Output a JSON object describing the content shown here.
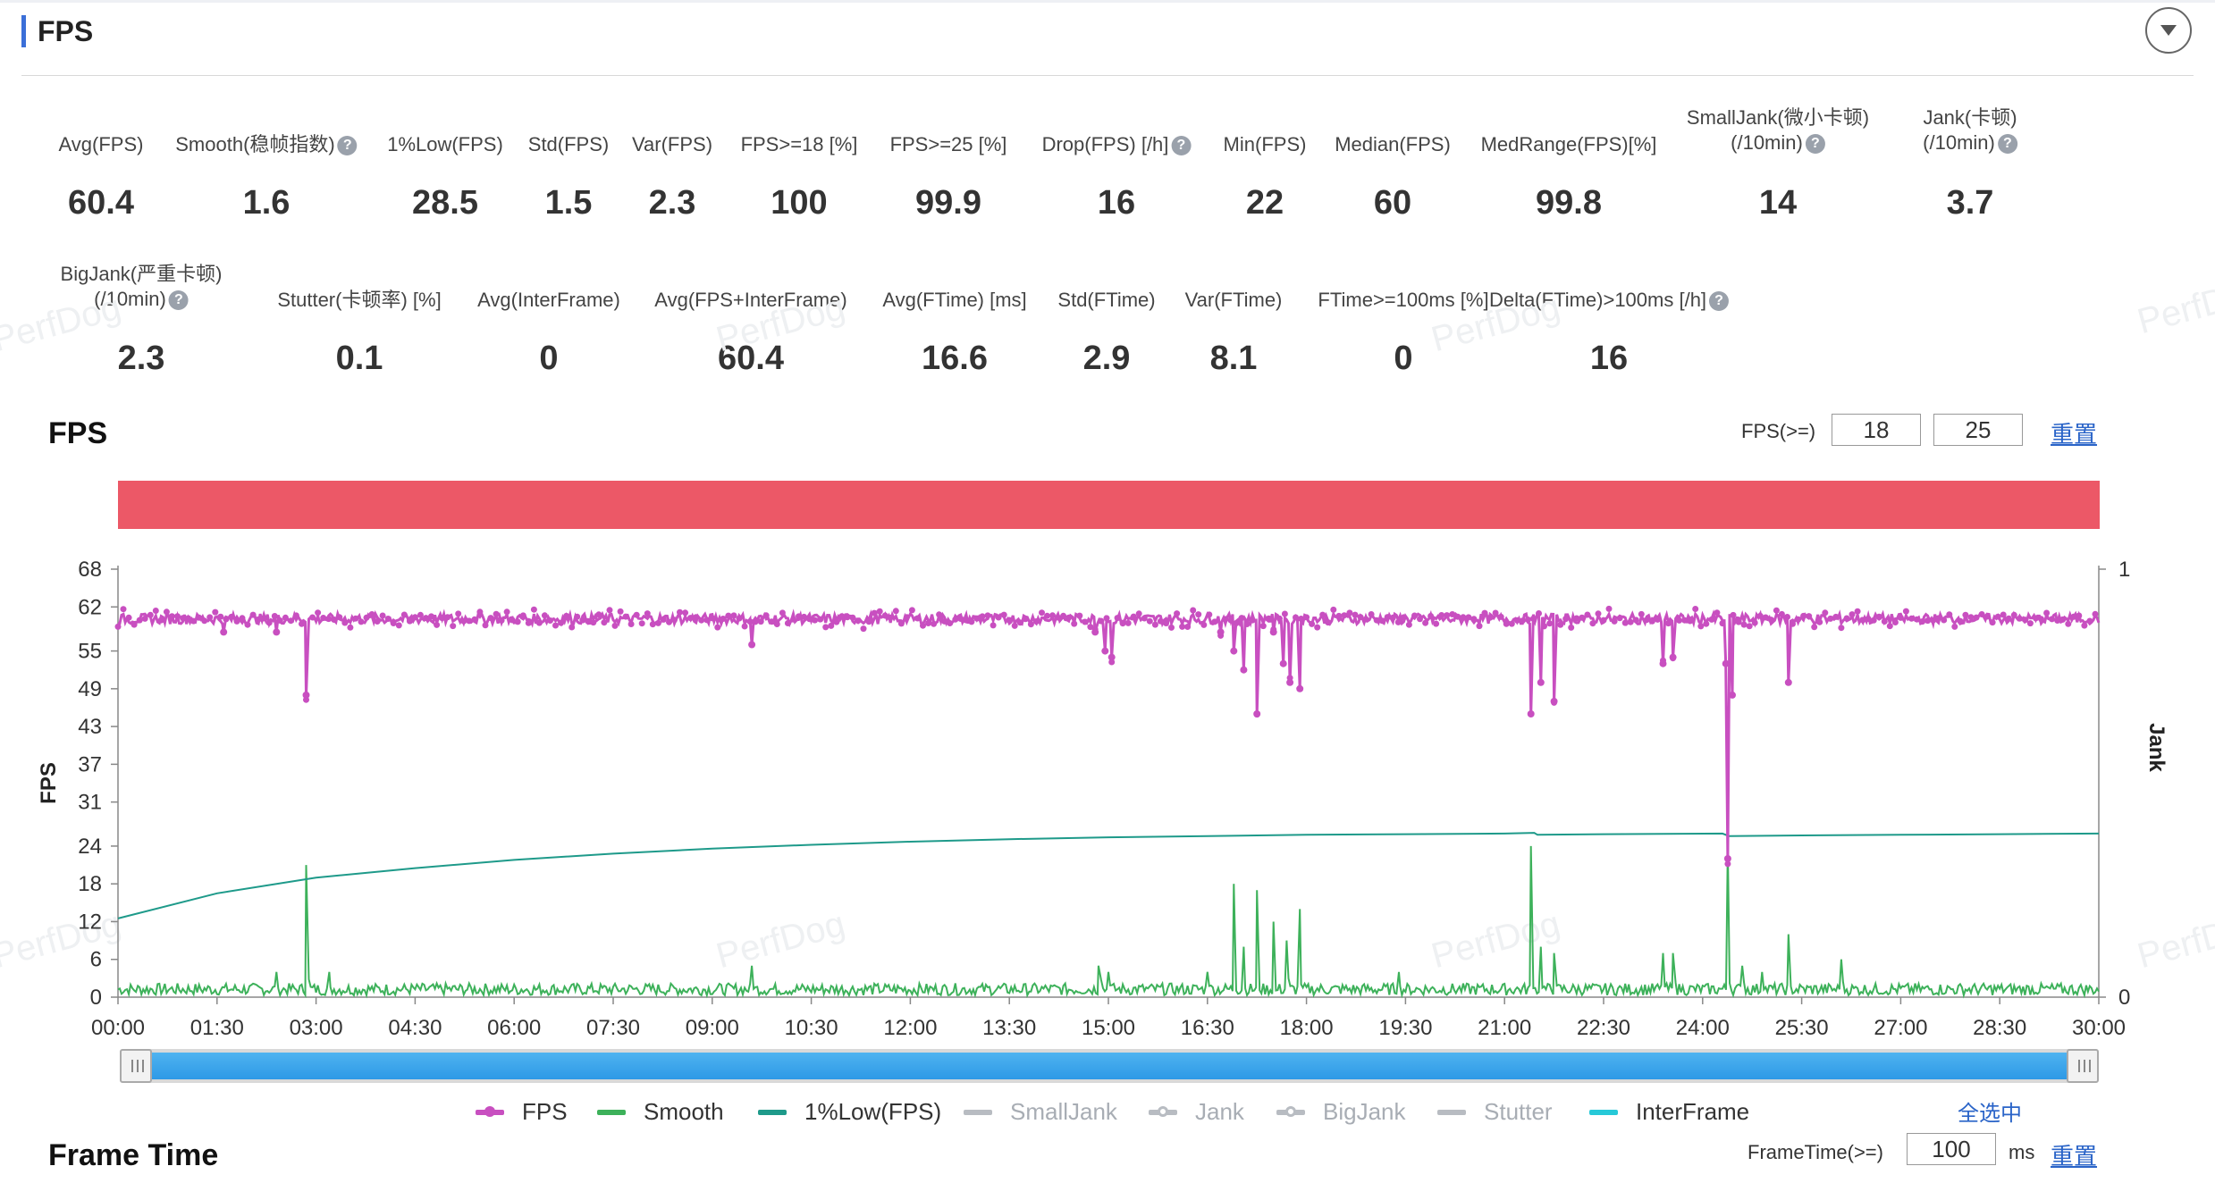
{
  "header": {
    "title": "FPS"
  },
  "metrics_row1": [
    {
      "label": "Avg(FPS)",
      "value": "60.4",
      "help": false
    },
    {
      "label": "Smooth(稳帧指数)",
      "value": "1.6",
      "help": true
    },
    {
      "label": "1%Low(FPS)",
      "value": "28.5",
      "help": false
    },
    {
      "label": "Std(FPS)",
      "value": "1.5",
      "help": false
    },
    {
      "label": "Var(FPS)",
      "value": "2.3",
      "help": false
    },
    {
      "label": "FPS>=18 [%]",
      "value": "100",
      "help": false
    },
    {
      "label": "FPS>=25 [%]",
      "value": "99.9",
      "help": false
    },
    {
      "label": "Drop(FPS) [/h]",
      "value": "16",
      "help": true
    },
    {
      "label": "Min(FPS)",
      "value": "22",
      "help": false
    },
    {
      "label": "Median(FPS)",
      "value": "60",
      "help": false
    },
    {
      "label": "MedRange(FPS)[%]",
      "value": "99.8",
      "help": false
    },
    {
      "label": "SmallJank(微小卡顿)",
      "label2": "(/10min)",
      "value": "14",
      "help": true
    },
    {
      "label": "Jank(卡顿)",
      "label2": "(/10min)",
      "value": "3.7",
      "help": true
    }
  ],
  "metrics_row2": [
    {
      "label": "BigJank(严重卡顿)",
      "label2": "(/10min)",
      "value": "2.3",
      "help": true
    },
    {
      "label": "Stutter(卡顿率) [%]",
      "value": "0.1",
      "help": false
    },
    {
      "label": "Avg(InterFrame)",
      "value": "0",
      "help": false
    },
    {
      "label": "Avg(FPS+InterFrame)",
      "value": "60.4",
      "help": false
    },
    {
      "label": "Avg(FTime) [ms]",
      "value": "16.6",
      "help": false
    },
    {
      "label": "Std(FTime)",
      "value": "2.9",
      "help": false
    },
    {
      "label": "Var(FTime)",
      "value": "8.1",
      "help": false
    },
    {
      "label": "FTime>=100ms [%]",
      "value": "0",
      "help": false
    },
    {
      "label": "Delta(FTime)>100ms [/h]",
      "value": "16",
      "help": true
    }
  ],
  "watermark": "PerfDog",
  "fps_section": {
    "title": "FPS",
    "threshold_label": "FPS(>=)",
    "threshold_values": [
      "18",
      "25"
    ],
    "reset_label": "重置"
  },
  "chart_data": {
    "type": "line",
    "ylabel": "FPS",
    "ylabel_right": "Jank",
    "y_ticks": [
      0,
      6,
      12,
      18,
      24,
      31,
      37,
      43,
      49,
      55,
      62,
      68
    ],
    "ylim": [
      0,
      68
    ],
    "y2_ticks": [
      0,
      1
    ],
    "x_ticks": [
      "00:00",
      "01:30",
      "03:00",
      "04:30",
      "06:00",
      "07:30",
      "09:00",
      "10:30",
      "12:00",
      "13:30",
      "15:00",
      "16:30",
      "18:00",
      "19:30",
      "21:00",
      "22:30",
      "24:00",
      "25:30",
      "27:00",
      "28:30",
      "30:00"
    ],
    "x_range_minutes": [
      0,
      30
    ],
    "series": [
      {
        "name": "FPS",
        "color": "#c84fc0",
        "baseline": 60,
        "dips": [
          [
            1.6,
            58
          ],
          [
            2.4,
            58
          ],
          [
            2.85,
            48
          ],
          [
            9.6,
            56
          ],
          [
            14.8,
            58
          ],
          [
            14.95,
            55
          ],
          [
            15.05,
            54
          ],
          [
            16.7,
            58
          ],
          [
            16.9,
            55
          ],
          [
            17.05,
            52
          ],
          [
            17.25,
            45
          ],
          [
            17.5,
            58
          ],
          [
            17.65,
            53
          ],
          [
            17.75,
            50
          ],
          [
            17.9,
            49
          ],
          [
            21.4,
            45
          ],
          [
            21.55,
            50
          ],
          [
            21.75,
            47
          ],
          [
            23.4,
            53
          ],
          [
            23.55,
            54
          ],
          [
            24.35,
            53
          ],
          [
            24.38,
            22
          ],
          [
            24.45,
            48
          ],
          [
            25.3,
            50
          ]
        ]
      },
      {
        "name": "Smooth",
        "color": "#3db15a",
        "baseline": 1,
        "spikes": [
          [
            2.85,
            21
          ],
          [
            2.4,
            4
          ],
          [
            3.2,
            4
          ],
          [
            9.6,
            5
          ],
          [
            14.85,
            5
          ],
          [
            15.0,
            4
          ],
          [
            16.5,
            4
          ],
          [
            16.9,
            18
          ],
          [
            17.05,
            8
          ],
          [
            17.25,
            17
          ],
          [
            17.5,
            12
          ],
          [
            17.7,
            9
          ],
          [
            17.9,
            14
          ],
          [
            19.4,
            4
          ],
          [
            21.4,
            24
          ],
          [
            21.55,
            8
          ],
          [
            21.75,
            7
          ],
          [
            23.4,
            7
          ],
          [
            23.55,
            7
          ],
          [
            24.38,
            24
          ],
          [
            24.6,
            5
          ],
          [
            24.9,
            4
          ],
          [
            25.3,
            10
          ],
          [
            26.1,
            6
          ]
        ]
      },
      {
        "name": "1%Low(FPS)",
        "color": "#1e9a8a",
        "points": [
          [
            0,
            12.5
          ],
          [
            1.5,
            16.5
          ],
          [
            3,
            19
          ],
          [
            4.5,
            20.5
          ],
          [
            6,
            21.8
          ],
          [
            7.5,
            22.8
          ],
          [
            9,
            23.6
          ],
          [
            10.5,
            24.2
          ],
          [
            12,
            24.7
          ],
          [
            13.5,
            25.1
          ],
          [
            15,
            25.4
          ],
          [
            16.5,
            25.6
          ],
          [
            18,
            25.8
          ],
          [
            19.5,
            25.9
          ],
          [
            21,
            26.0
          ],
          [
            21.45,
            26.1
          ],
          [
            21.5,
            25.8
          ],
          [
            22.5,
            25.9
          ],
          [
            24.3,
            26.0
          ],
          [
            24.4,
            25.6
          ],
          [
            25.5,
            25.7
          ],
          [
            27,
            25.8
          ],
          [
            28.5,
            25.9
          ],
          [
            30,
            26.0
          ]
        ]
      }
    ],
    "legend": [
      {
        "name": "FPS",
        "color": "#c84fc0",
        "marker": "dot",
        "active": true
      },
      {
        "name": "Smooth",
        "color": "#3db15a",
        "marker": "line",
        "active": true
      },
      {
        "name": "1%Low(FPS)",
        "color": "#1e9a8a",
        "marker": "line",
        "active": true
      },
      {
        "name": "SmallJank",
        "color": "#b8bcc2",
        "marker": "line",
        "active": false
      },
      {
        "name": "Jank",
        "color": "#b8bcc2",
        "marker": "dot",
        "active": false
      },
      {
        "name": "BigJank",
        "color": "#b8bcc2",
        "marker": "dot",
        "active": false
      },
      {
        "name": "Stutter",
        "color": "#b8bcc2",
        "marker": "line",
        "active": false
      },
      {
        "name": "InterFrame",
        "color": "#27c9d8",
        "marker": "line",
        "active": true
      }
    ],
    "legend_placement": "bottom"
  },
  "select_all_label": "全选中",
  "frame_time_section": {
    "title": "Frame Time",
    "threshold_label": "FrameTime(>=)",
    "threshold_value": "100",
    "unit": "ms",
    "reset_label": "重置"
  }
}
